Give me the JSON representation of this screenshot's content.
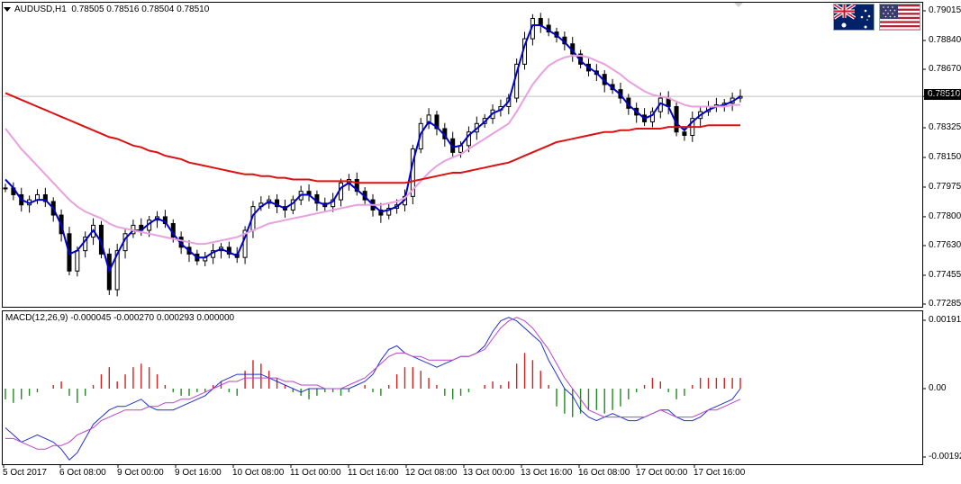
{
  "header": {
    "symbol": "AUDUSD,H1",
    "ohlc": "0.78505 0.78516 0.78504 0.78510"
  },
  "macd_header": {
    "text": "MACD(12,26,9) -0.000045 -0.000270 0.000293 0.000000"
  },
  "current_price": "0.78510",
  "flags": [
    {
      "name": "australia-flag-icon"
    },
    {
      "name": "usa-flag-icon"
    }
  ],
  "colors": {
    "candles": "#000000",
    "ma_fast": "#0000cc",
    "ma_mid": "#e8a0e0",
    "ma_slow": "#dd1111",
    "macd_line": "#2233cc",
    "signal_line": "#bb44cc",
    "hist_up": "#cc2222",
    "hist_down": "#228822",
    "current_price_line": "#c0c0c0"
  },
  "chart_data": [
    {
      "type": "candlestick",
      "title": "AUDUSD,H1",
      "y_ticks": [
        "0.79015",
        "0.78840",
        "0.78670",
        "0.78510",
        "0.78325",
        "0.78150",
        "0.77975",
        "0.77800",
        "0.77630",
        "0.77455",
        "0.77285"
      ],
      "ylim": [
        0.77285,
        0.79015
      ],
      "x_ticks": [
        "5 Oct 2017",
        "6 Oct 08:00",
        "9 Oct 00:00",
        "9 Oct 16:00",
        "10 Oct 08:00",
        "11 Oct 00:00",
        "11 Oct 16:00",
        "12 Oct 08:00",
        "13 Oct 00:00",
        "13 Oct 16:00",
        "16 Oct 08:00",
        "17 Oct 00:00",
        "17 Oct 16:00"
      ],
      "close": [
        0.7797,
        0.7793,
        0.7787,
        0.779,
        0.7793,
        0.7789,
        0.7781,
        0.777,
        0.7748,
        0.776,
        0.7768,
        0.7775,
        0.7758,
        0.7737,
        0.776,
        0.777,
        0.7775,
        0.7772,
        0.7778,
        0.778,
        0.7776,
        0.7768,
        0.7762,
        0.7758,
        0.7754,
        0.7756,
        0.776,
        0.7762,
        0.7758,
        0.7756,
        0.7772,
        0.7786,
        0.7788,
        0.779,
        0.7786,
        0.7784,
        0.779,
        0.7795,
        0.7793,
        0.7788,
        0.7786,
        0.779,
        0.78,
        0.7802,
        0.7795,
        0.779,
        0.7784,
        0.7781,
        0.7785,
        0.7787,
        0.7792,
        0.782,
        0.7835,
        0.784,
        0.7832,
        0.7826,
        0.7818,
        0.7822,
        0.783,
        0.7835,
        0.7838,
        0.7843,
        0.7845,
        0.785,
        0.787,
        0.7885,
        0.7897,
        0.7893,
        0.7889,
        0.7886,
        0.7882,
        0.7876,
        0.787,
        0.7866,
        0.7864,
        0.7858,
        0.7855,
        0.785,
        0.7844,
        0.784,
        0.7836,
        0.7842,
        0.785,
        0.7845,
        0.783,
        0.7828,
        0.7838,
        0.7842,
        0.7845,
        0.7846,
        0.7847,
        0.785,
        0.7851
      ],
      "series": [
        {
          "name": "MA fast",
          "values": [
            0.7802,
            0.7797,
            0.779,
            0.7788,
            0.779,
            0.779,
            0.7785,
            0.7775,
            0.7758,
            0.776,
            0.7766,
            0.7772,
            0.7765,
            0.7748,
            0.7758,
            0.7767,
            0.7772,
            0.7772,
            0.7776,
            0.7779,
            0.7777,
            0.777,
            0.7764,
            0.776,
            0.7756,
            0.7756,
            0.7759,
            0.7761,
            0.7759,
            0.7757,
            0.7768,
            0.7781,
            0.7786,
            0.7789,
            0.7787,
            0.7785,
            0.7788,
            0.7793,
            0.7793,
            0.7789,
            0.7787,
            0.7789,
            0.7797,
            0.78,
            0.7796,
            0.7792,
            0.7787,
            0.7783,
            0.7784,
            0.7786,
            0.779,
            0.7812,
            0.7829,
            0.7836,
            0.7833,
            0.7828,
            0.7821,
            0.7822,
            0.7828,
            0.7832,
            0.7836,
            0.7841,
            0.7843,
            0.7848,
            0.7865,
            0.7881,
            0.7893,
            0.7893,
            0.789,
            0.7887,
            0.7883,
            0.7878,
            0.7872,
            0.7868,
            0.7865,
            0.786,
            0.7856,
            0.7852,
            0.7846,
            0.7842,
            0.7838,
            0.784,
            0.7847,
            0.7845,
            0.7835,
            0.7831,
            0.7836,
            0.784,
            0.7843,
            0.7845,
            0.7846,
            0.7848,
            0.7851
          ]
        },
        {
          "name": "MA mid",
          "values": [
            0.7832,
            0.7826,
            0.782,
            0.7815,
            0.781,
            0.7805,
            0.78,
            0.7795,
            0.779,
            0.7786,
            0.7783,
            0.7781,
            0.7779,
            0.7776,
            0.7774,
            0.7773,
            0.7772,
            0.7771,
            0.777,
            0.7769,
            0.7768,
            0.7767,
            0.7766,
            0.7765,
            0.7764,
            0.7764,
            0.7765,
            0.7766,
            0.7767,
            0.7768,
            0.777,
            0.7772,
            0.7774,
            0.7776,
            0.7777,
            0.7778,
            0.7779,
            0.778,
            0.7781,
            0.7782,
            0.7783,
            0.7784,
            0.7785,
            0.7786,
            0.7787,
            0.7787,
            0.7787,
            0.7787,
            0.7788,
            0.7789,
            0.7791,
            0.7796,
            0.7801,
            0.7806,
            0.781,
            0.7813,
            0.7815,
            0.7817,
            0.782,
            0.7823,
            0.7826,
            0.7829,
            0.7832,
            0.7835,
            0.7842,
            0.785,
            0.7858,
            0.7864,
            0.7869,
            0.7872,
            0.7874,
            0.7875,
            0.7875,
            0.7874,
            0.7872,
            0.787,
            0.7867,
            0.7864,
            0.786,
            0.7857,
            0.7854,
            0.7852,
            0.7851,
            0.785,
            0.7848,
            0.7846,
            0.7845,
            0.7845,
            0.7845,
            0.7845,
            0.7845,
            0.7846,
            0.7846
          ]
        },
        {
          "name": "MA slow",
          "values": [
            0.7853,
            0.7851,
            0.7849,
            0.7847,
            0.7845,
            0.7843,
            0.7841,
            0.7839,
            0.7837,
            0.7835,
            0.7833,
            0.7831,
            0.7829,
            0.7827,
            0.7826,
            0.7824,
            0.7822,
            0.7821,
            0.7819,
            0.7818,
            0.7816,
            0.7815,
            0.7814,
            0.7812,
            0.7811,
            0.781,
            0.7809,
            0.7808,
            0.7807,
            0.7806,
            0.7805,
            0.7805,
            0.7804,
            0.7804,
            0.7803,
            0.7803,
            0.7802,
            0.7802,
            0.7802,
            0.7801,
            0.7801,
            0.7801,
            0.7801,
            0.7801,
            0.78,
            0.78,
            0.78,
            0.78,
            0.78,
            0.78,
            0.78,
            0.7801,
            0.7802,
            0.7803,
            0.7804,
            0.7805,
            0.7806,
            0.7806,
            0.7807,
            0.7808,
            0.7809,
            0.781,
            0.7811,
            0.7812,
            0.7814,
            0.7816,
            0.7818,
            0.782,
            0.7822,
            0.7824,
            0.7825,
            0.7826,
            0.7827,
            0.7828,
            0.7829,
            0.783,
            0.783,
            0.7831,
            0.7831,
            0.7832,
            0.7832,
            0.7832,
            0.7832,
            0.7833,
            0.7833,
            0.7833,
            0.7833,
            0.7833,
            0.7834,
            0.7834,
            0.7834,
            0.7834,
            0.7834
          ]
        }
      ],
      "current_price": 0.7851
    },
    {
      "type": "bar",
      "title": "MACD(12,26,9)",
      "y_ticks": [
        "0.001918",
        "0.00",
        "-0.00192"
      ],
      "ylim": [
        -0.00192,
        0.001918
      ],
      "series": [
        {
          "name": "histogram",
          "values": [
            -0.0003,
            -0.0004,
            -0.0003,
            -0.0002,
            -0.0001,
            0.0,
            0.0001,
            0.0002,
            -0.0002,
            -0.0004,
            -0.0002,
            0.0001,
            0.0004,
            0.0006,
            0.0002,
            0.0004,
            0.0006,
            0.0007,
            0.0006,
            0.0004,
            0.0001,
            -0.0001,
            -0.0002,
            -0.0002,
            -0.0001,
            -0.0001,
            0.0001,
            0.0002,
            -0.0001,
            -0.0002,
            0.0005,
            0.0008,
            0.0007,
            0.0005,
            0.0003,
            0.0001,
            -0.0001,
            -0.0002,
            -0.0003,
            -0.0002,
            -0.0001,
            -0.0001,
            -0.0002,
            -0.0001,
            0.0,
            0.0001,
            -0.0001,
            -0.0002,
            0.0001,
            0.0004,
            0.0006,
            0.0006,
            0.0005,
            0.0003,
            0.0001,
            -0.0002,
            -0.0003,
            -0.0002,
            -0.0001,
            0.0,
            0.0001,
            0.0002,
            0.0001,
            0.0002,
            0.0007,
            0.001,
            0.0008,
            0.0005,
            0.0001,
            -0.0005,
            -0.0007,
            -0.0008,
            -0.0007,
            -0.0006,
            -0.0006,
            -0.0007,
            -0.0006,
            -0.0005,
            -0.0003,
            -0.0001,
            0.0001,
            0.0003,
            0.0002,
            -0.0001,
            -0.0003,
            -0.0002,
            0.0001,
            0.0003,
            0.0003,
            0.0003,
            0.0003,
            0.0003,
            0.0003
          ]
        },
        {
          "name": "MACD",
          "values": [
            -0.0011,
            -0.0013,
            -0.0015,
            -0.0014,
            -0.0013,
            -0.0014,
            -0.0015,
            -0.0017,
            -0.002,
            -0.0018,
            -0.0014,
            -0.001,
            -0.0008,
            -0.0006,
            -0.0005,
            -0.0005,
            -0.0004,
            -0.0003,
            -0.0005,
            -0.0006,
            -0.0006,
            -0.0006,
            -0.0005,
            -0.0004,
            -0.0003,
            -0.0002,
            0.0,
            0.0002,
            0.0003,
            0.0004,
            0.0004,
            0.0004,
            0.0004,
            0.0003,
            0.0002,
            0.0001,
            0.0,
            -0.0001,
            0.0,
            0.0,
            0.0,
            0.0,
            0.0,
            0.0,
            0.0001,
            0.0002,
            0.0004,
            0.0008,
            0.0011,
            0.0012,
            0.001,
            0.0009,
            0.0008,
            0.0007,
            0.0006,
            0.0007,
            0.0008,
            0.0009,
            0.0009,
            0.001,
            0.0012,
            0.0016,
            0.0019,
            0.002,
            0.0019,
            0.0017,
            0.0015,
            0.0013,
            0.0008,
            0.0004,
            0.0,
            -0.0002,
            -0.0006,
            -0.0008,
            -0.0009,
            -0.0008,
            -0.0007,
            -0.0008,
            -0.0009,
            -0.0009,
            -0.0008,
            -0.0007,
            -0.0006,
            -0.0006,
            -0.0008,
            -0.0009,
            -0.0009,
            -0.0008,
            -0.0006,
            -0.0005,
            -0.0004,
            -0.0003,
            0.0
          ]
        },
        {
          "name": "Signal",
          "values": [
            -0.0014,
            -0.0014,
            -0.0015,
            -0.0016,
            -0.0017,
            -0.0017,
            -0.0016,
            -0.0016,
            -0.0015,
            -0.0013,
            -0.0012,
            -0.0011,
            -0.0009,
            -0.0008,
            -0.0007,
            -0.0006,
            -0.0006,
            -0.0006,
            -0.0005,
            -0.0005,
            -0.0004,
            -0.0004,
            -0.0003,
            -0.0003,
            -0.0002,
            -0.0001,
            0.0,
            0.0001,
            0.0002,
            0.0002,
            0.0003,
            0.0003,
            0.0003,
            0.0003,
            0.0003,
            0.0002,
            0.0002,
            0.0001,
            0.0001,
            0.0001,
            0.0,
            0.0,
            0.0,
            0.0001,
            0.0002,
            0.0003,
            0.0005,
            0.0007,
            0.0009,
            0.001,
            0.001,
            0.0009,
            0.0009,
            0.0008,
            0.0008,
            0.0008,
            0.0008,
            0.0009,
            0.0009,
            0.001,
            0.0011,
            0.0014,
            0.0017,
            0.0019,
            0.002,
            0.0019,
            0.0017,
            0.0014,
            0.0011,
            0.0007,
            0.0003,
            0.0,
            -0.0003,
            -0.0006,
            -0.0007,
            -0.0008,
            -0.0008,
            -0.0008,
            -0.0008,
            -0.0008,
            -0.0008,
            -0.0007,
            -0.0006,
            -0.0007,
            -0.0008,
            -0.0008,
            -0.0008,
            -0.0007,
            -0.0006,
            -0.0006,
            -0.0005,
            -0.0004,
            -0.0003
          ]
        }
      ]
    }
  ]
}
